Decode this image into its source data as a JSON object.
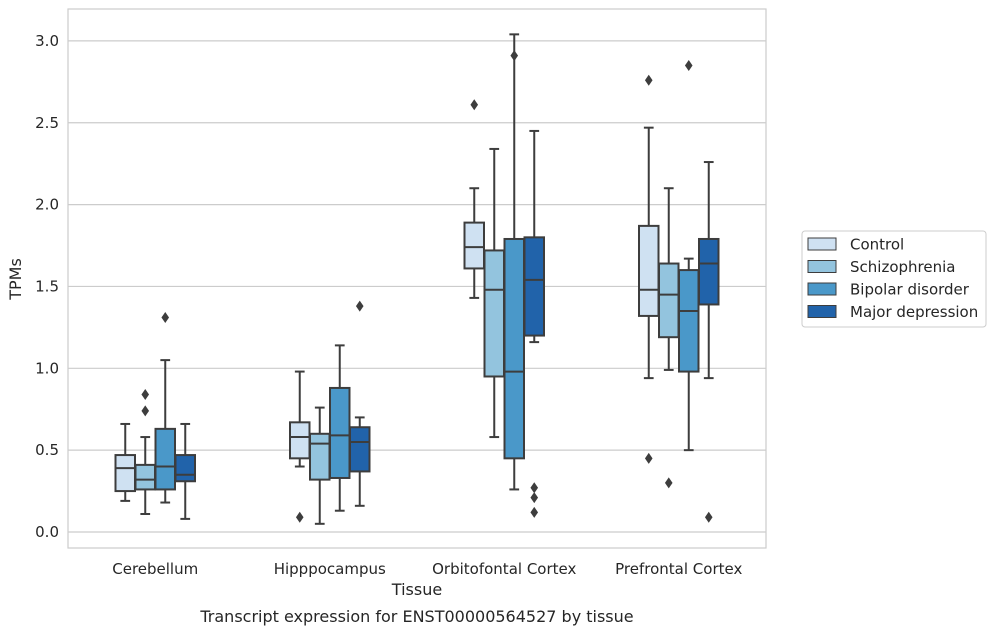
{
  "chart_data": {
    "type": "box",
    "title": "",
    "caption": "Transcript expression for ENST00000564527 by tissue",
    "xlabel": "Tissue",
    "ylabel": "TPMs",
    "ylim": [
      -0.1,
      3.2
    ],
    "yticks": [
      "0.0",
      "0.5",
      "1.0",
      "1.5",
      "2.0",
      "2.5",
      "3.0"
    ],
    "grid": "horizontal",
    "legend_position": "right",
    "categories": [
      "Cerebellum",
      "Hipppocampus",
      "Orbitofontal Cortex",
      "Prefrontal Cortex"
    ],
    "series": [
      {
        "name": "Control",
        "color": "#cfe1f2",
        "boxes": [
          {
            "whislo": 0.19,
            "q1": 0.25,
            "med": 0.39,
            "q3": 0.47,
            "whishi": 0.66,
            "fliers": []
          },
          {
            "whislo": 0.4,
            "q1": 0.45,
            "med": 0.58,
            "q3": 0.67,
            "whishi": 0.98,
            "fliers": [
              0.09
            ]
          },
          {
            "whislo": 1.43,
            "q1": 1.61,
            "med": 1.74,
            "q3": 1.89,
            "whishi": 2.1,
            "fliers": [
              2.61
            ]
          },
          {
            "whislo": 0.94,
            "q1": 1.32,
            "med": 1.48,
            "q3": 1.87,
            "whishi": 2.47,
            "fliers": [
              0.45,
              2.76
            ]
          }
        ]
      },
      {
        "name": "Schizophrenia",
        "color": "#93c4de",
        "boxes": [
          {
            "whislo": 0.11,
            "q1": 0.26,
            "med": 0.32,
            "q3": 0.41,
            "whishi": 0.58,
            "fliers": [
              0.74,
              0.84
            ]
          },
          {
            "whislo": 0.05,
            "q1": 0.32,
            "med": 0.54,
            "q3": 0.6,
            "whishi": 0.76,
            "fliers": []
          },
          {
            "whislo": 0.58,
            "q1": 0.95,
            "med": 1.48,
            "q3": 1.72,
            "whishi": 2.34,
            "fliers": []
          },
          {
            "whislo": 0.99,
            "q1": 1.19,
            "med": 1.45,
            "q3": 1.64,
            "whishi": 2.1,
            "fliers": [
              0.3
            ]
          }
        ]
      },
      {
        "name": "Bipolar disorder",
        "color": "#4a98c9",
        "boxes": [
          {
            "whislo": 0.18,
            "q1": 0.26,
            "med": 0.4,
            "q3": 0.63,
            "whishi": 1.05,
            "fliers": [
              1.31
            ]
          },
          {
            "whislo": 0.13,
            "q1": 0.33,
            "med": 0.59,
            "q3": 0.88,
            "whishi": 1.14,
            "fliers": []
          },
          {
            "whislo": 0.26,
            "q1": 0.45,
            "med": 0.98,
            "q3": 1.79,
            "whishi": 3.04,
            "fliers": [
              2.91
            ]
          },
          {
            "whislo": 0.5,
            "q1": 0.98,
            "med": 1.35,
            "q3": 1.6,
            "whishi": 1.67,
            "fliers": [
              2.85
            ]
          }
        ]
      },
      {
        "name": "Major depression",
        "color": "#2163aa",
        "boxes": [
          {
            "whislo": 0.08,
            "q1": 0.31,
            "med": 0.35,
            "q3": 0.47,
            "whishi": 0.66,
            "fliers": []
          },
          {
            "whislo": 0.16,
            "q1": 0.37,
            "med": 0.55,
            "q3": 0.64,
            "whishi": 0.7,
            "fliers": [
              1.38
            ]
          },
          {
            "whislo": 1.16,
            "q1": 1.2,
            "med": 1.54,
            "q3": 1.8,
            "whishi": 2.45,
            "fliers": [
              0.12,
              0.21,
              0.27
            ]
          },
          {
            "whislo": 0.94,
            "q1": 1.39,
            "med": 1.64,
            "q3": 1.79,
            "whishi": 2.26,
            "fliers": [
              0.09
            ]
          }
        ]
      }
    ]
  }
}
